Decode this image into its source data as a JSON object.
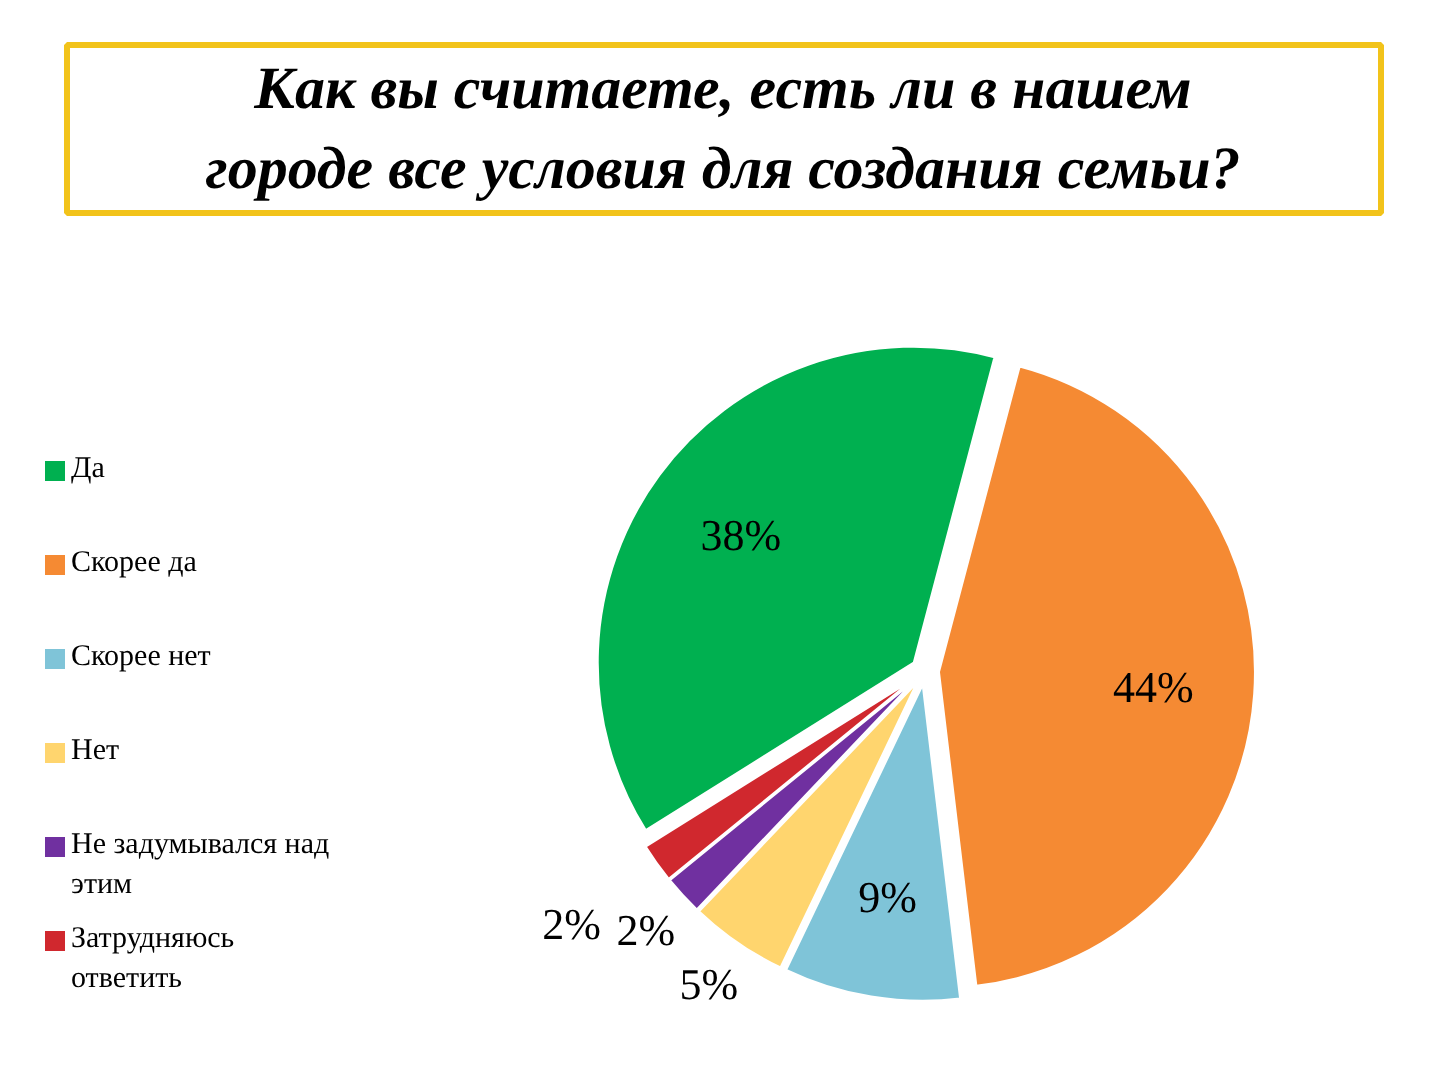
{
  "chart_data": {
    "type": "pie",
    "title": "Как вы считаете, есть ли в нашем городе все условия для создания семьи?",
    "categories": [
      "Да",
      "Скорее да",
      "Скорее нет",
      "Нет",
      "Не задумывался над этим",
      "Затрудняюсь ответить"
    ],
    "values": [
      38,
      44,
      9,
      5,
      2,
      2
    ],
    "colors": [
      "#00b050",
      "#f58a33",
      "#7fc4d8",
      "#ffd56e",
      "#7030a0",
      "#d0282e"
    ],
    "value_labels": [
      "38%",
      "44%",
      "9%",
      "5%",
      "2%",
      "2%"
    ],
    "legend": "left"
  }
}
